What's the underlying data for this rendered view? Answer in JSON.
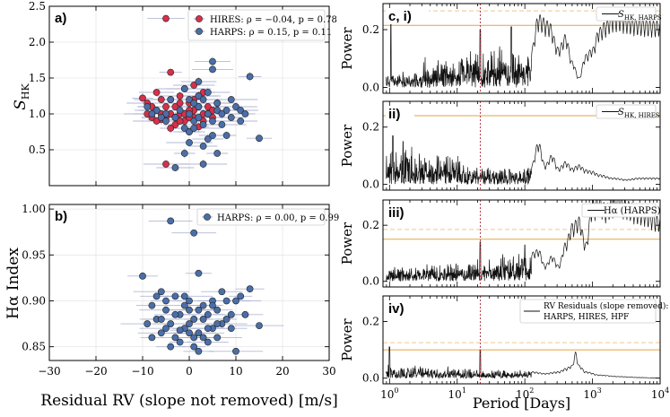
{
  "chart_data": [
    {
      "id": "a",
      "type": "scatter",
      "panel_label": "a)",
      "xlabel": "",
      "ylabel_main": "S",
      "ylabel_sub": "HK",
      "xlim": [
        -30,
        30
      ],
      "ylim": [
        0.0,
        2.5
      ],
      "yticks": [
        0.5,
        1.0,
        1.5,
        2.0,
        2.5
      ],
      "ytick_labels": [
        "0.5",
        "1.0",
        "1.5",
        "2.0",
        "2.5"
      ],
      "grid": true,
      "legend": "top-right",
      "series": [
        {
          "name": "HIRES",
          "legend_label": "HIRES: ρ = −0.04, p = 0.78",
          "color": "#d6304a",
          "points": [
            [
              -5,
              2.33
            ],
            [
              -4,
              1.58
            ],
            [
              -7,
              1.3
            ],
            [
              -10,
              1.22
            ],
            [
              -9,
              1.15
            ],
            [
              -8,
              1.1
            ],
            [
              -7,
              1.05
            ],
            [
              -6,
              1.0
            ],
            [
              -5,
              0.95
            ],
            [
              -4,
              1.2
            ],
            [
              -3,
              1.1
            ],
            [
              -2,
              1.0
            ],
            [
              -1,
              0.9
            ],
            [
              0,
              1.15
            ],
            [
              1,
              1.05
            ],
            [
              2,
              1.25
            ],
            [
              3,
              1.0
            ],
            [
              4,
              1.1
            ],
            [
              5,
              0.95
            ],
            [
              -3,
              0.85
            ],
            [
              0,
              0.75
            ],
            [
              2,
              0.82
            ],
            [
              -6,
              0.92
            ],
            [
              -1,
              1.35
            ],
            [
              1,
              1.4
            ],
            [
              -2,
              1.25
            ],
            [
              3,
              1.3
            ],
            [
              4,
              1.0
            ],
            [
              -8,
              0.95
            ],
            [
              -5,
              0.3
            ],
            [
              -5,
              1.1
            ],
            [
              -4,
              1.0
            ],
            [
              -2,
              1.15
            ],
            [
              0,
              1.05
            ],
            [
              1,
              0.95
            ],
            [
              2,
              1.1
            ],
            [
              -1,
              1.0
            ],
            [
              -3,
              0.95
            ],
            [
              -6,
              1.2
            ],
            [
              -7,
              0.9
            ],
            [
              6,
              1.15
            ],
            [
              5,
              1.05
            ],
            [
              -9,
              1.0
            ],
            [
              3,
              0.9
            ],
            [
              0,
              0.95
            ],
            [
              -2,
              0.9
            ],
            [
              1,
              1.2
            ],
            [
              -4,
              0.8
            ]
          ]
        },
        {
          "name": "HARPS",
          "legend_label": "HARPS: ρ = 0.15, p = 0.11",
          "color": "#4a6ea8",
          "points": [
            [
              5,
              1.73
            ],
            [
              5,
              1.62
            ],
            [
              13,
              1.52
            ],
            [
              -1,
              1.35
            ],
            [
              0,
              1.2
            ],
            [
              2,
              1.1
            ],
            [
              4,
              1.3
            ],
            [
              6,
              1.15
            ],
            [
              8,
              1.05
            ],
            [
              -5,
              1.0
            ],
            [
              -3,
              0.95
            ],
            [
              1,
              0.9
            ],
            [
              3,
              0.85
            ],
            [
              -1,
              0.8
            ],
            [
              0,
              0.75
            ],
            [
              5,
              0.7
            ],
            [
              7,
              0.85
            ],
            [
              9,
              0.95
            ],
            [
              10,
              1.1
            ],
            [
              11,
              0.9
            ],
            [
              -7,
              1.05
            ],
            [
              -9,
              1.1
            ],
            [
              2,
              1.45
            ],
            [
              4,
              0.65
            ],
            [
              0,
              0.6
            ],
            [
              3,
              0.55
            ],
            [
              -1,
              0.45
            ],
            [
              6,
              0.45
            ],
            [
              15,
              0.66
            ],
            [
              8,
              0.7
            ],
            [
              -4,
              1.2
            ],
            [
              2,
              1.25
            ],
            [
              4,
              1.0
            ],
            [
              6,
              1.05
            ],
            [
              1,
              1.15
            ],
            [
              -2,
              1.05
            ],
            [
              7,
              1.0
            ],
            [
              9,
              1.2
            ],
            [
              3,
              1.2
            ],
            [
              0,
              1.0
            ],
            [
              -6,
              0.95
            ],
            [
              5,
              0.9
            ],
            [
              11,
              1.05
            ],
            [
              -8,
              1.0
            ],
            [
              2,
              0.95
            ],
            [
              3,
              0.3
            ],
            [
              -3,
              0.25
            ],
            [
              1,
              0.8
            ],
            [
              12,
              1.0
            ],
            [
              -5,
              0.9
            ]
          ]
        }
      ]
    },
    {
      "id": "b",
      "type": "scatter",
      "panel_label": "b)",
      "xlabel": "Residual RV (slope not removed) [m/s]",
      "ylabel": "Hα Index",
      "xlim": [
        -30,
        30
      ],
      "ylim": [
        0.835,
        1.005
      ],
      "xticks": [
        -30,
        -20,
        -10,
        0,
        10,
        20,
        30
      ],
      "xtick_labels": [
        "−30",
        "−20",
        "−10",
        "0",
        "10",
        "20",
        "30"
      ],
      "yticks": [
        0.85,
        0.9,
        0.95,
        1.0
      ],
      "ytick_labels": [
        "0.85",
        "0.90",
        "0.95",
        "1.00"
      ],
      "grid": true,
      "legend": "top-right",
      "series": [
        {
          "name": "HARPS",
          "legend_label": "HARPS: ρ = 0.00, p = 0.99",
          "color": "#4a6ea8",
          "points": [
            [
              -4,
              0.987
            ],
            [
              1,
              0.974
            ],
            [
              2,
              0.93
            ],
            [
              -10,
              0.927
            ],
            [
              -6,
              0.91
            ],
            [
              -3,
              0.905
            ],
            [
              0,
              0.9
            ],
            [
              3,
              0.895
            ],
            [
              5,
              0.9
            ],
            [
              7,
              0.91
            ],
            [
              10,
              0.9
            ],
            [
              -8,
              0.895
            ],
            [
              -5,
              0.89
            ],
            [
              -2,
              0.885
            ],
            [
              1,
              0.88
            ],
            [
              4,
              0.885
            ],
            [
              6,
              0.89
            ],
            [
              8,
              0.88
            ],
            [
              12,
              0.885
            ],
            [
              -9,
              0.875
            ],
            [
              -7,
              0.88
            ],
            [
              -4,
              0.875
            ],
            [
              -1,
              0.87
            ],
            [
              2,
              0.865
            ],
            [
              5,
              0.87
            ],
            [
              9,
              0.87
            ],
            [
              -6,
              0.865
            ],
            [
              -3,
              0.86
            ],
            [
              0,
              0.865
            ],
            [
              3,
              0.86
            ],
            [
              6,
              0.86
            ],
            [
              -2,
              0.855
            ],
            [
              1,
              0.85
            ],
            [
              4,
              0.855
            ],
            [
              -4,
              0.85
            ],
            [
              2,
              0.845
            ],
            [
              10,
              0.845
            ],
            [
              15,
              0.873
            ],
            [
              13,
              0.913
            ],
            [
              11,
              0.905
            ],
            [
              -1,
              0.905
            ],
            [
              -5,
              0.9
            ],
            [
              0,
              0.875
            ],
            [
              -8,
              0.86
            ],
            [
              7,
              0.875
            ],
            [
              3,
              0.88
            ],
            [
              -3,
              0.885
            ],
            [
              5,
              0.895
            ],
            [
              -7,
              0.905
            ],
            [
              8,
              0.9
            ],
            [
              -1,
              0.895
            ],
            [
              2,
              0.89
            ],
            [
              -5,
              0.87
            ],
            [
              6,
              0.875
            ],
            [
              -2,
              0.868
            ],
            [
              4,
              0.87
            ],
            [
              0,
              0.89
            ],
            [
              1,
              0.86
            ],
            [
              -6,
              0.88
            ],
            [
              9,
              0.885
            ]
          ]
        }
      ]
    },
    {
      "id": "c",
      "type": "line",
      "panel_label": "c, i)",
      "ylabel": "Power",
      "legend_label": "S",
      "legend_sub": "HK, HARPS",
      "xscale": "log",
      "xlim": [
        0.8,
        10000
      ],
      "ylim": [
        -0.02,
        0.29
      ],
      "yticks": [
        0.0,
        0.2
      ],
      "ytick_labels": [
        "0.0",
        "0.2"
      ],
      "fap_solid": 0.215,
      "fap_dashed": 0.265,
      "marker_period": 22
    },
    {
      "id": "d",
      "type": "line",
      "panel_label": "ii)",
      "ylabel": "Power",
      "legend_label": "S",
      "legend_sub": "HK, HIRES",
      "xscale": "log",
      "xlim": [
        0.8,
        10000
      ],
      "ylim": [
        -0.02,
        0.29
      ],
      "yticks": [
        0.0,
        0.2
      ],
      "ytick_labels": [
        "0.0",
        "0.2"
      ],
      "fap_solid": 0.24,
      "marker_period": 22
    },
    {
      "id": "e",
      "type": "line",
      "panel_label": "iii)",
      "ylabel": "Power",
      "legend_label": "Hα (HARPS)",
      "xscale": "log",
      "xlim": [
        0.8,
        10000
      ],
      "ylim": [
        -0.02,
        0.29
      ],
      "yticks": [
        0.0,
        0.2
      ],
      "ytick_labels": [
        "0.0",
        "0.2"
      ],
      "fap_solid": 0.15,
      "fap_dashed": 0.185,
      "marker_period": 22
    },
    {
      "id": "f",
      "type": "line",
      "panel_label": "iv)",
      "ylabel": "Power",
      "legend_line1": "RV Residuals (slope removed):",
      "legend_line2": "HARPS, HIRES, HPF",
      "xscale": "log",
      "xlim": [
        0.8,
        10000
      ],
      "ylim": [
        -0.02,
        0.29
      ],
      "yticks": [
        0.0,
        0.2
      ],
      "ytick_labels": [
        "0.0",
        "0.2"
      ],
      "xticks": [
        1,
        10,
        100,
        1000,
        10000
      ],
      "xtick_labels": [
        "10",
        "10",
        "10",
        "10",
        "10"
      ],
      "xtick_exps": [
        "0",
        "1",
        "2",
        "3",
        "4"
      ],
      "xlabel": "Period [Days]",
      "fap_solid": 0.1,
      "fap_dashed": 0.125,
      "marker_period": 22
    }
  ],
  "colors": {
    "fap_solid": "#e3a545",
    "fap_dashed": "#f0c889",
    "marker": "#b02a3a",
    "errorbar": "#9aa3c8",
    "grid": "#e6e6e6"
  }
}
